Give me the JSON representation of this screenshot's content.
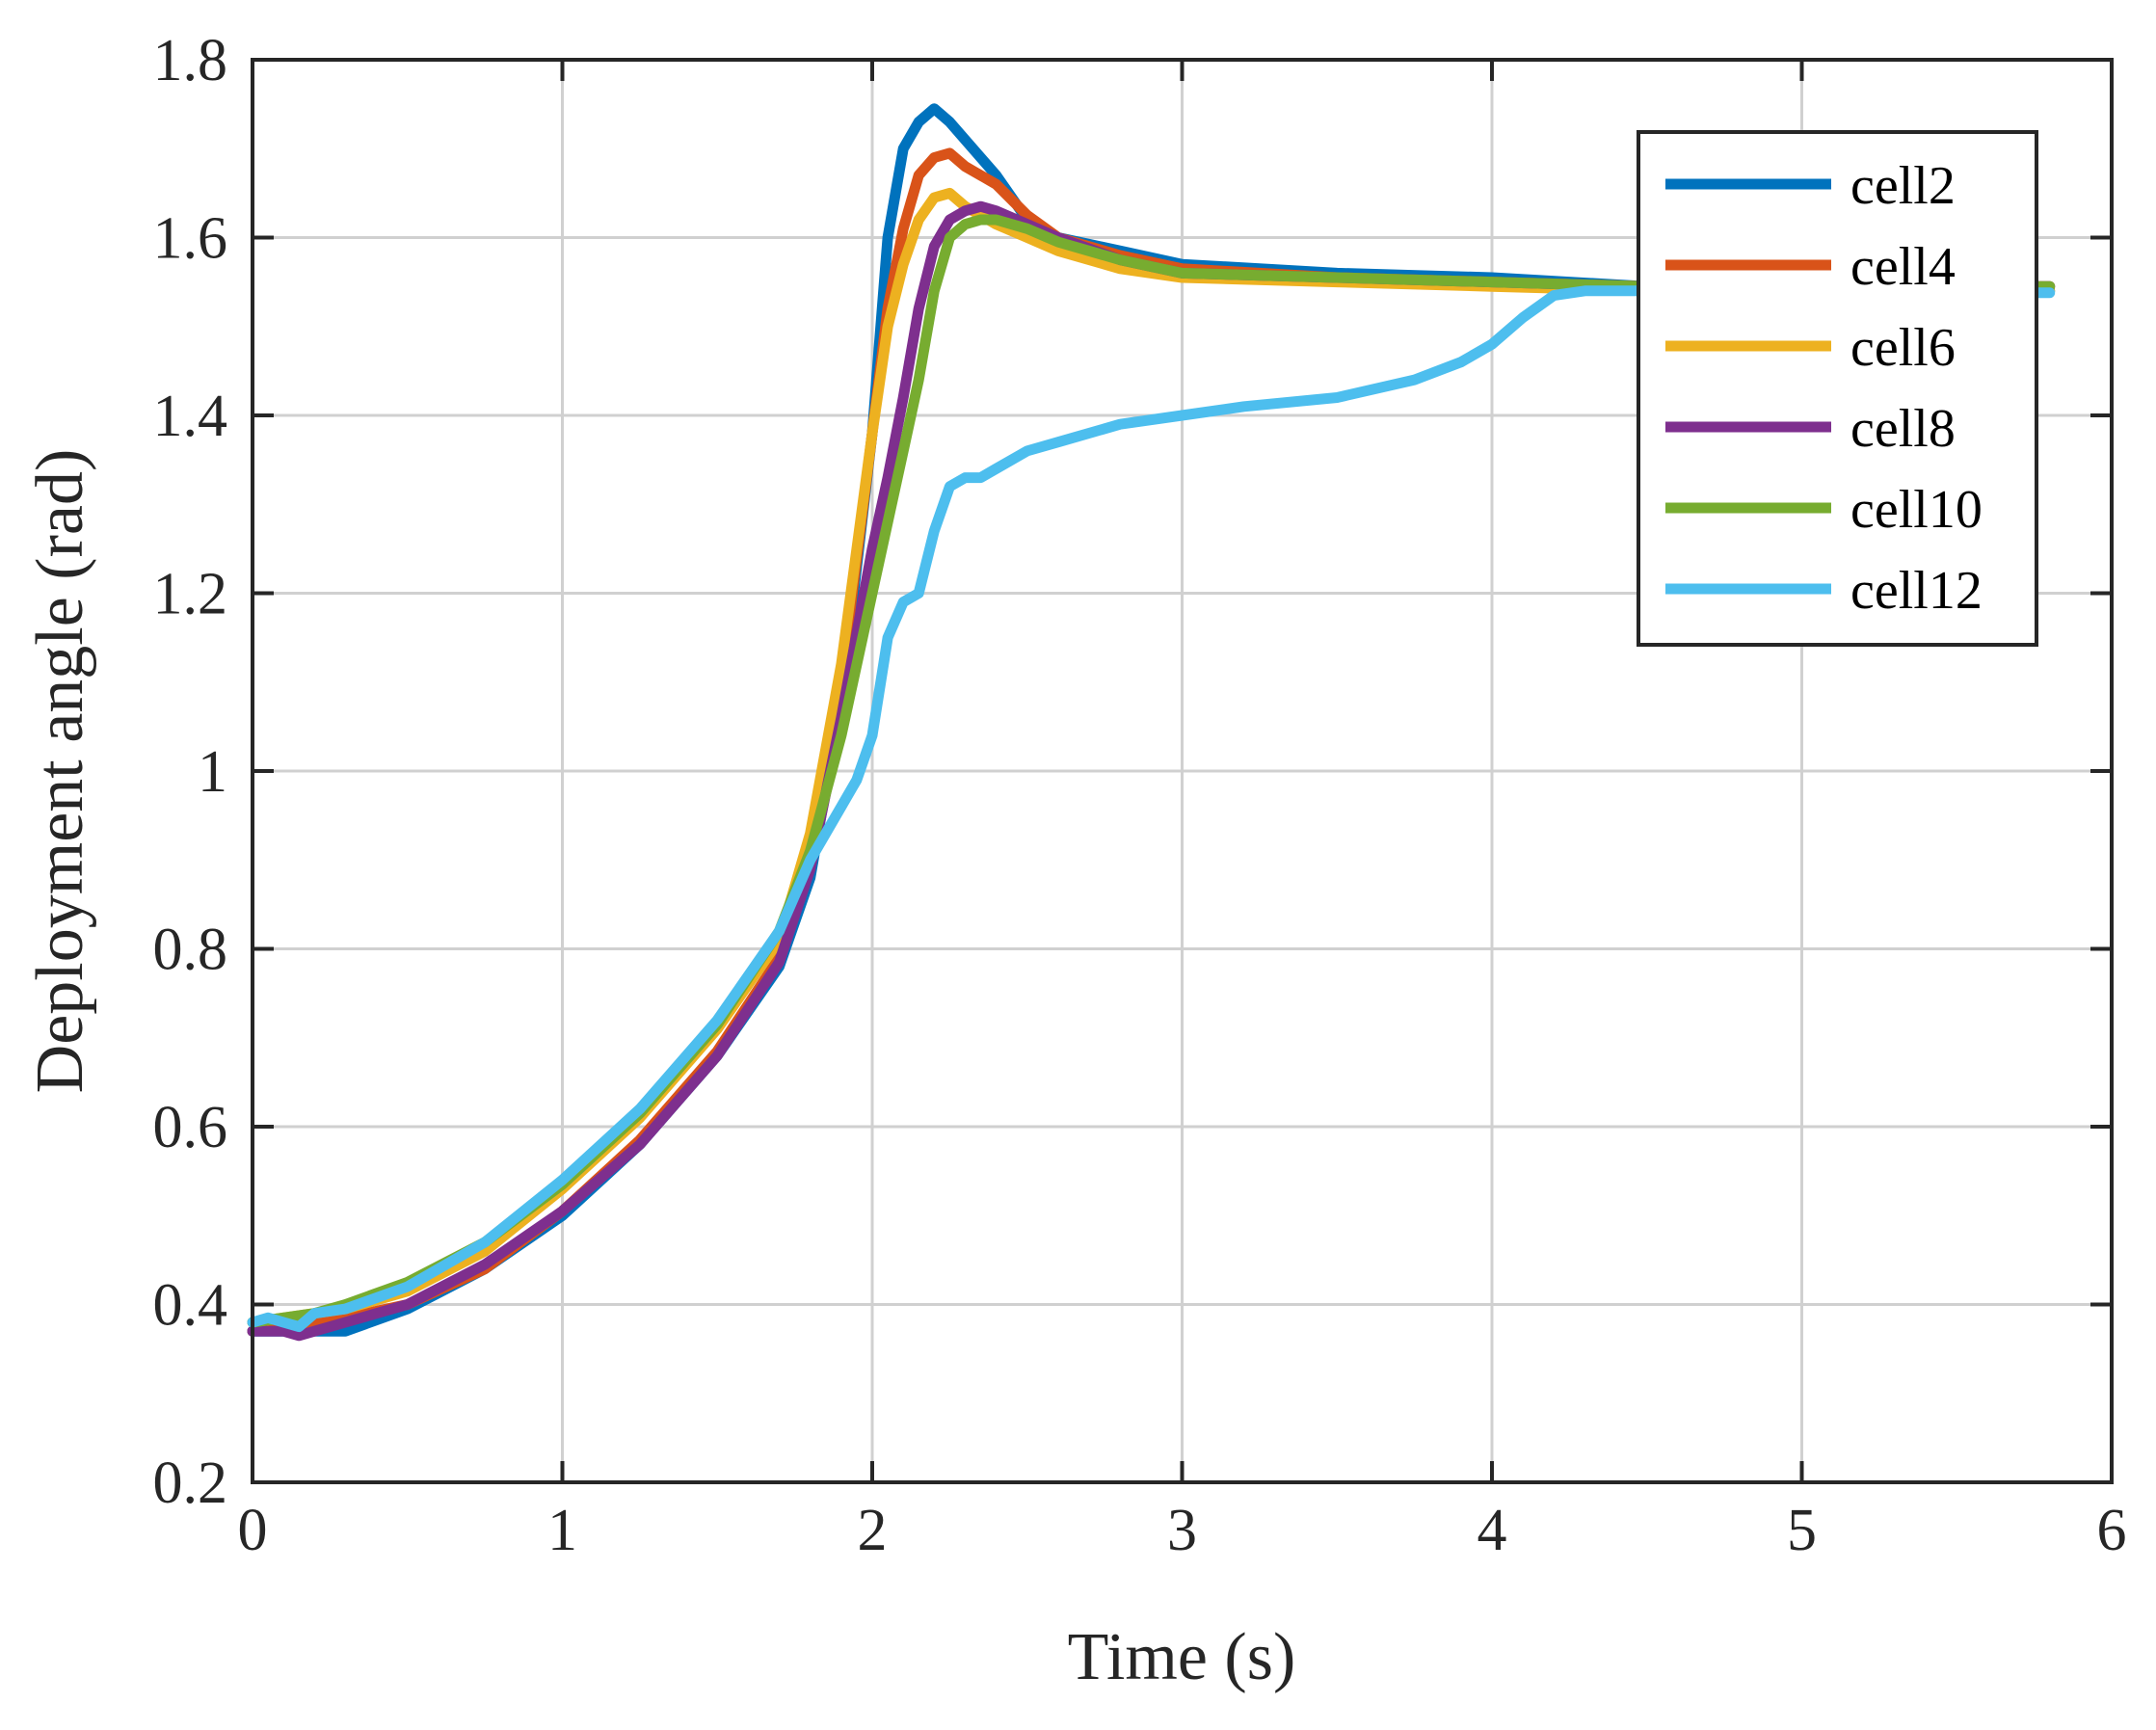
{
  "chart_data": {
    "type": "line",
    "title": "",
    "xlabel": "Time (s)",
    "ylabel": "Deployment angle (rad)",
    "xlim": [
      0,
      6
    ],
    "ylim": [
      0.2,
      1.8
    ],
    "xticks": [
      "0",
      "1",
      "2",
      "3",
      "4",
      "5",
      "6"
    ],
    "yticks": [
      "0.2",
      "0.4",
      "0.6",
      "0.8",
      "1",
      "1.2",
      "1.4",
      "1.6",
      "1.8"
    ],
    "grid": true,
    "legend_position": "top-right",
    "series": [
      {
        "name": "cell2",
        "color": "#0072BD",
        "x": [
          0,
          0.1,
          0.2,
          0.3,
          0.5,
          0.75,
          1.0,
          1.25,
          1.5,
          1.7,
          1.8,
          1.9,
          2.0,
          2.05,
          2.1,
          2.15,
          2.2,
          2.25,
          2.3,
          2.4,
          2.5,
          2.6,
          2.8,
          3.0,
          3.5,
          4.0,
          4.5,
          5.0,
          5.5,
          5.8
        ],
        "y": [
          0.37,
          0.37,
          0.37,
          0.37,
          0.395,
          0.44,
          0.5,
          0.58,
          0.68,
          0.78,
          0.88,
          1.08,
          1.38,
          1.6,
          1.7,
          1.73,
          1.745,
          1.73,
          1.71,
          1.67,
          1.62,
          1.6,
          1.585,
          1.57,
          1.56,
          1.555,
          1.545,
          1.54,
          1.54,
          1.54
        ]
      },
      {
        "name": "cell4",
        "color": "#D95319",
        "x": [
          0,
          0.1,
          0.2,
          0.3,
          0.5,
          0.75,
          1.0,
          1.25,
          1.5,
          1.7,
          1.8,
          1.9,
          2.0,
          2.05,
          2.1,
          2.15,
          2.2,
          2.25,
          2.3,
          2.4,
          2.5,
          2.6,
          2.8,
          3.0,
          3.5,
          4.0,
          4.5,
          5.0,
          5.5,
          5.8
        ],
        "y": [
          0.37,
          0.375,
          0.38,
          0.385,
          0.4,
          0.44,
          0.505,
          0.585,
          0.685,
          0.79,
          0.9,
          1.1,
          1.38,
          1.52,
          1.61,
          1.67,
          1.69,
          1.695,
          1.68,
          1.66,
          1.625,
          1.6,
          1.58,
          1.565,
          1.555,
          1.55,
          1.545,
          1.545,
          1.545,
          1.545
        ]
      },
      {
        "name": "cell6",
        "color": "#EDB120",
        "x": [
          0,
          0.1,
          0.2,
          0.3,
          0.5,
          0.75,
          1.0,
          1.25,
          1.5,
          1.7,
          1.8,
          1.9,
          2.0,
          2.05,
          2.1,
          2.15,
          2.2,
          2.25,
          2.3,
          2.4,
          2.5,
          2.6,
          2.8,
          3.0,
          3.5,
          4.0,
          4.5,
          5.0,
          5.5,
          5.8
        ],
        "y": [
          0.38,
          0.385,
          0.39,
          0.395,
          0.415,
          0.46,
          0.53,
          0.61,
          0.71,
          0.81,
          0.93,
          1.12,
          1.38,
          1.5,
          1.57,
          1.62,
          1.645,
          1.65,
          1.635,
          1.615,
          1.6,
          1.585,
          1.565,
          1.555,
          1.55,
          1.545,
          1.54,
          1.54,
          1.54,
          1.54
        ]
      },
      {
        "name": "cell8",
        "color": "#7E2F8E",
        "x": [
          0,
          0.1,
          0.15,
          0.2,
          0.3,
          0.5,
          0.75,
          1.0,
          1.25,
          1.5,
          1.7,
          1.8,
          1.9,
          2.0,
          2.05,
          2.1,
          2.15,
          2.2,
          2.25,
          2.3,
          2.35,
          2.4,
          2.5,
          2.6,
          2.8,
          3.0,
          3.5,
          4.0,
          4.5,
          5.0,
          5.5,
          5.8
        ],
        "y": [
          0.37,
          0.37,
          0.365,
          0.37,
          0.38,
          0.4,
          0.445,
          0.505,
          0.58,
          0.68,
          0.785,
          0.89,
          1.06,
          1.25,
          1.33,
          1.42,
          1.52,
          1.59,
          1.62,
          1.63,
          1.635,
          1.63,
          1.615,
          1.6,
          1.575,
          1.56,
          1.555,
          1.55,
          1.545,
          1.545,
          1.545,
          1.545
        ]
      },
      {
        "name": "cell10",
        "color": "#77AC30",
        "x": [
          0,
          0.1,
          0.2,
          0.3,
          0.5,
          0.75,
          1.0,
          1.25,
          1.5,
          1.7,
          1.8,
          1.9,
          2.0,
          2.05,
          2.1,
          2.15,
          2.2,
          2.25,
          2.3,
          2.35,
          2.4,
          2.5,
          2.6,
          2.8,
          3.0,
          3.5,
          4.0,
          4.5,
          5.0,
          5.5,
          5.8
        ],
        "y": [
          0.38,
          0.385,
          0.39,
          0.4,
          0.425,
          0.47,
          0.535,
          0.615,
          0.715,
          0.82,
          0.91,
          1.04,
          1.2,
          1.28,
          1.36,
          1.44,
          1.54,
          1.6,
          1.615,
          1.62,
          1.62,
          1.61,
          1.595,
          1.575,
          1.56,
          1.555,
          1.55,
          1.545,
          1.545,
          1.545,
          1.545
        ]
      },
      {
        "name": "cell12",
        "color": "#4DBEEE",
        "x": [
          0,
          0.05,
          0.1,
          0.15,
          0.2,
          0.3,
          0.5,
          0.75,
          1.0,
          1.25,
          1.5,
          1.7,
          1.8,
          1.9,
          1.95,
          2.0,
          2.05,
          2.1,
          2.15,
          2.2,
          2.25,
          2.3,
          2.35,
          2.4,
          2.5,
          2.6,
          2.8,
          3.0,
          3.2,
          3.5,
          3.75,
          3.9,
          4.0,
          4.1,
          4.2,
          4.3,
          4.5,
          5.0,
          5.5,
          5.8
        ],
        "y": [
          0.38,
          0.385,
          0.38,
          0.375,
          0.39,
          0.395,
          0.42,
          0.47,
          0.54,
          0.62,
          0.72,
          0.82,
          0.9,
          0.96,
          0.99,
          1.04,
          1.15,
          1.19,
          1.2,
          1.27,
          1.32,
          1.33,
          1.33,
          1.34,
          1.36,
          1.37,
          1.39,
          1.4,
          1.41,
          1.42,
          1.44,
          1.46,
          1.48,
          1.51,
          1.535,
          1.54,
          1.54,
          1.538,
          1.538,
          1.538
        ]
      }
    ]
  }
}
